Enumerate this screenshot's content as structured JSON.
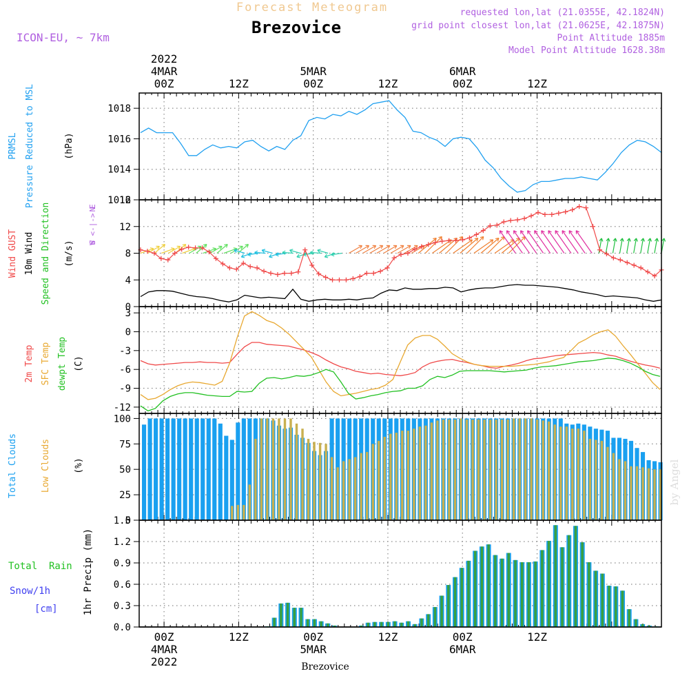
{
  "header": {
    "title": "Forecast Meteogram",
    "station": "Brezovice",
    "model": "ICON-EU,  ~ 7km",
    "requested": "requested lon,lat (21.0355E, 42.1824N)",
    "gridpoint": "grid point closest lon,lat (21.0625E, 42.1875N)",
    "altitude": "Point Altitude 1885m",
    "model_altitude": "Model Point Altitude 1628.38m",
    "watermark": "by Angel",
    "footer": "Brezovice"
  },
  "colors": {
    "prmsl": "#20a0f0",
    "temp2m": "#f04848",
    "sfctemp": "#e8a830",
    "dewpt": "#20c020",
    "gust": "#f04848",
    "wind": "#000000",
    "purple": "#b060e0",
    "green_label": "#20c020",
    "snow_label": "#4040f0",
    "total_cloud": "#1aa0f0",
    "low_cloud": "#c8b050",
    "rain_bar": "#1aa0f0",
    "rain_inner": "#3aa040"
  },
  "time_axis": {
    "top_labels": [
      {
        "hour": -2,
        "lines": [
          "2022",
          "4MAR",
          "00Z"
        ]
      },
      {
        "hour": 10,
        "lines": [
          "12Z"
        ]
      },
      {
        "hour": 22,
        "lines": [
          "5MAR",
          "00Z"
        ]
      },
      {
        "hour": 34,
        "lines": [
          "12Z"
        ]
      },
      {
        "hour": 46,
        "lines": [
          "6MAR",
          "00Z"
        ]
      },
      {
        "hour": 58,
        "lines": [
          "12Z"
        ]
      }
    ],
    "bottom_labels": [
      {
        "hour": -2,
        "lines": [
          "00Z",
          "4MAR",
          "2022"
        ]
      },
      {
        "hour": 10,
        "lines": [
          "12Z"
        ]
      },
      {
        "hour": 22,
        "lines": [
          "00Z",
          "5MAR"
        ]
      },
      {
        "hour": 34,
        "lines": [
          "12Z"
        ]
      },
      {
        "hour": 46,
        "lines": [
          "00Z",
          "6MAR"
        ]
      },
      {
        "hour": 58,
        "lines": [
          "12Z"
        ]
      }
    ]
  },
  "chart_data": [
    {
      "type": "line",
      "name": "prmsl",
      "ylabel_lines": [
        "PRMSL",
        "Pressure Reduced to MSL"
      ],
      "unit": "(hPa)",
      "ylim": [
        1012,
        1019
      ],
      "yticks": [
        1012,
        1014,
        1016,
        1018
      ],
      "series": [
        {
          "name": "PRMSL",
          "values": [
            1016.4,
            1016.7,
            1016.4,
            1016.4,
            1016.4,
            1015.7,
            1014.9,
            1014.9,
            1015.3,
            1015.6,
            1015.4,
            1015.5,
            1015.4,
            1015.8,
            1015.9,
            1015.5,
            1015.2,
            1015.5,
            1015.3,
            1015.9,
            1016.2,
            1017.2,
            1017.4,
            1017.3,
            1017.6,
            1017.5,
            1017.8,
            1017.6,
            1017.9,
            1018.3,
            1018.4,
            1018.5,
            1017.9,
            1017.4,
            1016.5,
            1016.4,
            1016.1,
            1015.9,
            1015.5,
            1016.0,
            1016.1,
            1016.0,
            1015.4,
            1014.6,
            1014.1,
            1013.4,
            1012.9,
            1012.5,
            1012.6,
            1013.0,
            1013.2,
            1013.2,
            1013.3,
            1013.4,
            1013.4,
            1013.5,
            1013.4,
            1013.3,
            1013.8,
            1014.4,
            1015.1,
            1015.6,
            1015.9,
            1015.8,
            1015.5,
            1015.1
          ]
        }
      ]
    },
    {
      "type": "line",
      "name": "wind",
      "ylabel_lines": [
        "Wind GUST",
        "10m Wind",
        "Speed and Direction"
      ],
      "unit": "(m/s)",
      "compass": [
        "N",
        "W <-|-> E",
        "S"
      ],
      "ylim": [
        0,
        16
      ],
      "yticks": [
        0,
        4,
        8,
        12,
        16
      ],
      "series": [
        {
          "name": "Wind GUST",
          "values": [
            8.5,
            8.3,
            8.0,
            7.2,
            7.0,
            8.0,
            8.6,
            8.9,
            8.8,
            8.8,
            8.2,
            7.2,
            6.4,
            5.8,
            5.6,
            6.5,
            6.0,
            5.8,
            5.3,
            5.0,
            4.8,
            5.0,
            5.0,
            5.2,
            8.5,
            6.2,
            4.9,
            4.4,
            4.0,
            4.0,
            4.0,
            4.2,
            4.5,
            5.0,
            5.0,
            5.3,
            5.8,
            7.3,
            7.8,
            8.0,
            8.6,
            9.0,
            9.3,
            9.6,
            9.8,
            9.9,
            9.9,
            10.0,
            10.3,
            10.8,
            11.4,
            12.1,
            12.2,
            12.7,
            12.9,
            13.0,
            13.2,
            13.6,
            14.1,
            13.8,
            13.8,
            14.0,
            14.2,
            14.5,
            15.0,
            14.8,
            12.0,
            8.5,
            7.9,
            7.3,
            7.0,
            6.6,
            6.2,
            5.8,
            5.2,
            4.6,
            5.5
          ]
        },
        {
          "name": "10m Wind",
          "values": [
            1.5,
            2.2,
            2.4,
            2.4,
            2.3,
            2.0,
            1.7,
            1.5,
            1.4,
            1.2,
            0.9,
            0.7,
            1.0,
            1.7,
            1.5,
            1.3,
            1.4,
            1.3,
            1.2,
            2.6,
            1.1,
            0.8,
            1.0,
            1.1,
            1.0,
            1.0,
            1.1,
            1.0,
            1.2,
            1.3,
            2.0,
            2.5,
            2.4,
            2.8,
            2.6,
            2.6,
            2.7,
            2.7,
            2.9,
            2.8,
            2.2,
            2.5,
            2.7,
            2.8,
            2.8,
            3.0,
            3.2,
            3.3,
            3.2,
            3.2,
            3.1,
            3.0,
            2.9,
            2.7,
            2.5,
            2.2,
            2.0,
            1.8,
            1.5,
            1.6,
            1.5,
            1.4,
            1.3,
            1.0,
            0.8,
            1.0
          ]
        }
      ]
    },
    {
      "type": "line",
      "name": "temperature",
      "ylabel_lines": [
        "2m Temp",
        "SFC Temp",
        "dewpt Temp"
      ],
      "unit": "(C)",
      "ylim": [
        -13,
        4
      ],
      "yticks": [
        -12,
        -9,
        -6,
        -3,
        0,
        3
      ],
      "series": [
        {
          "name": "2m Temp",
          "values": [
            -4.6,
            -5.1,
            -5.3,
            -5.2,
            -5.1,
            -5.0,
            -4.9,
            -4.9,
            -4.8,
            -4.9,
            -4.9,
            -5.0,
            -4.9,
            -3.6,
            -2.4,
            -1.7,
            -1.7,
            -2.0,
            -2.1,
            -2.2,
            -2.3,
            -2.6,
            -2.9,
            -3.3,
            -3.8,
            -4.5,
            -5.1,
            -5.6,
            -5.9,
            -6.3,
            -6.5,
            -6.7,
            -6.6,
            -6.8,
            -6.9,
            -7.0,
            -6.8,
            -6.5,
            -5.6,
            -5.0,
            -4.7,
            -4.5,
            -4.4,
            -4.7,
            -4.9,
            -5.2,
            -5.4,
            -5.7,
            -5.8,
            -5.5,
            -5.3,
            -5.0,
            -4.6,
            -4.3,
            -4.2,
            -4.0,
            -3.8,
            -3.7,
            -3.6,
            -3.5,
            -3.4,
            -3.3,
            -3.4,
            -3.7,
            -3.9,
            -4.3,
            -4.7,
            -5.0,
            -5.3,
            -5.5,
            -5.8
          ]
        },
        {
          "name": "SFC Temp",
          "values": [
            -10.0,
            -10.8,
            -10.6,
            -10.0,
            -9.2,
            -8.6,
            -8.2,
            -8.0,
            -8.1,
            -8.3,
            -8.5,
            -7.9,
            -5.0,
            -1.0,
            2.5,
            3.2,
            2.6,
            1.8,
            1.4,
            0.6,
            -0.4,
            -1.6,
            -2.8,
            -4.0,
            -6.0,
            -8.0,
            -9.5,
            -10.2,
            -10.0,
            -9.8,
            -9.5,
            -9.2,
            -9.0,
            -8.5,
            -7.6,
            -4.8,
            -2.1,
            -1.0,
            -0.6,
            -0.6,
            -1.2,
            -2.3,
            -3.5,
            -4.2,
            -4.8,
            -5.2,
            -5.4,
            -5.5,
            -5.5,
            -5.5,
            -5.5,
            -5.4,
            -5.3,
            -5.2,
            -5.0,
            -4.8,
            -4.4,
            -4.1,
            -3.0,
            -1.8,
            -1.2,
            -0.5,
            0.0,
            0.3,
            -0.7,
            -2.2,
            -3.6,
            -5.1,
            -6.6,
            -8.1,
            -9.2
          ]
        },
        {
          "name": "dewpt Temp",
          "values": [
            -11.8,
            -12.6,
            -12.2,
            -11.0,
            -10.3,
            -9.9,
            -9.7,
            -9.7,
            -9.9,
            -10.1,
            -10.2,
            -10.3,
            -10.3,
            -9.5,
            -9.6,
            -9.5,
            -8.2,
            -7.4,
            -7.3,
            -7.5,
            -7.3,
            -7.0,
            -7.1,
            -6.9,
            -6.5,
            -6.0,
            -6.4,
            -8.0,
            -9.8,
            -10.7,
            -10.5,
            -10.2,
            -10.0,
            -9.7,
            -9.5,
            -9.4,
            -9.0,
            -9.0,
            -8.6,
            -7.6,
            -7.1,
            -7.3,
            -6.9,
            -6.3,
            -6.2,
            -6.2,
            -6.2,
            -6.2,
            -6.3,
            -6.4,
            -6.3,
            -6.2,
            -6.1,
            -5.8,
            -5.6,
            -5.5,
            -5.4,
            -5.2,
            -5.0,
            -4.8,
            -4.7,
            -4.6,
            -4.4,
            -4.2,
            -4.3,
            -4.6,
            -5.0,
            -5.6,
            -6.3,
            -6.8,
            -7.1
          ]
        }
      ]
    },
    {
      "type": "bar",
      "name": "clouds",
      "ylabel_lines": [
        "Total Clouds",
        "Low Clouds"
      ],
      "unit": "(%)",
      "ylim": [
        0,
        105
      ],
      "yticks": [
        0,
        25,
        50,
        75,
        100
      ],
      "series": [
        {
          "name": "Total Clouds",
          "values": [
            94,
            100,
            100,
            100,
            100,
            100,
            100,
            100,
            100,
            100,
            100,
            100,
            100,
            95,
            83,
            79,
            96,
            100,
            100,
            100,
            100,
            100,
            98,
            93,
            90,
            91,
            84,
            81,
            76,
            68,
            64,
            68,
            100,
            100,
            100,
            100,
            100,
            100,
            100,
            100,
            100,
            100,
            100,
            100,
            100,
            100,
            100,
            100,
            100,
            100,
            100,
            100,
            100,
            100,
            100,
            100,
            100,
            100,
            100,
            100,
            100,
            100,
            100,
            100,
            100,
            100,
            100,
            100,
            100,
            100,
            100,
            100,
            95,
            94,
            95,
            94,
            92,
            90,
            89,
            88,
            81,
            81,
            80,
            78,
            71,
            67,
            59,
            58,
            57
          ]
        },
        {
          "name": "Low Clouds",
          "values": [
            0,
            0,
            0,
            0,
            0,
            0,
            0,
            0,
            0,
            0,
            0,
            0,
            0,
            0,
            0,
            14,
            15,
            15,
            35,
            80,
            100,
            100,
            100,
            100,
            100,
            100,
            95,
            90,
            80,
            77,
            76,
            75,
            62,
            52,
            58,
            60,
            62,
            66,
            67,
            75,
            78,
            82,
            85,
            86,
            88,
            88,
            90,
            92,
            93,
            96,
            98,
            99,
            99,
            99,
            100,
            99,
            99,
            99,
            99,
            99,
            99,
            99,
            99,
            100,
            100,
            100,
            100,
            99,
            98,
            97,
            94,
            92,
            92,
            90,
            90,
            88,
            80,
            79,
            78,
            72,
            66,
            60,
            58,
            53,
            53,
            52,
            51,
            50,
            50
          ]
        }
      ]
    },
    {
      "type": "bar",
      "name": "precip",
      "ylabel_lines": [
        "Total  Rain",
        "Snow/1h",
        "[cm]"
      ],
      "unit": "1hr Precip (mm)",
      "ylim": [
        0,
        1.5
      ],
      "yticks": [
        0,
        0.3,
        0.6,
        0.9,
        1.2,
        1.5
      ],
      "series": [
        {
          "name": "Total Rain",
          "values": [
            0,
            0,
            0,
            0,
            0,
            0,
            0,
            0,
            0,
            0,
            0,
            0,
            0,
            0,
            0,
            0,
            0,
            0,
            0.01,
            0.13,
            0.33,
            0.34,
            0.27,
            0.27,
            0.11,
            0.11,
            0.08,
            0.05,
            0.02,
            0,
            0,
            0,
            0.02,
            0.06,
            0.07,
            0.07,
            0.07,
            0.08,
            0.06,
            0.08,
            0.04,
            0.12,
            0.18,
            0.28,
            0.44,
            0.59,
            0.7,
            0.83,
            0.93,
            1.07,
            1.13,
            1.16,
            1.01,
            0.96,
            1.04,
            0.94,
            0.91,
            0.91,
            0.92,
            1.08,
            1.21,
            1.43,
            1.12,
            1.29,
            1.42,
            1.19,
            0.91,
            0.79,
            0.75,
            0.58,
            0.57,
            0.51,
            0.25,
            0.11,
            0.04,
            0.02,
            0.01
          ]
        }
      ]
    }
  ]
}
